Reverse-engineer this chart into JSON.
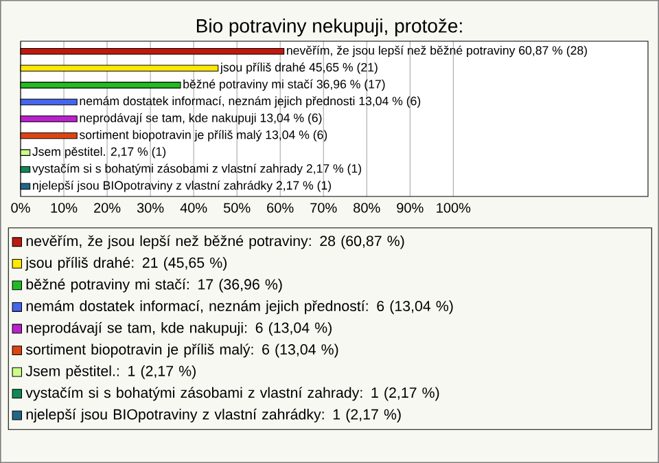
{
  "chart_data": {
    "type": "bar",
    "orientation": "horizontal",
    "title": "Bio potraviny nekupuji, protože:",
    "categories": [
      "nevěřím, že jsou lepší než běžné potraviny 60,87 % (28)",
      "jsou příliš drahé 45,65 % (21)",
      "běžné potraviny mi stačí 36,96 % (17)",
      "nemám dostatek informací, neznám jejich přednosti 13,04 % (6)",
      "neprodávají se tam, kde nakupuji 13,04 % (6)",
      "sortiment biopotravin je příliš malý 13,04 % (6)",
      "Jsem pěstitel. 2,17 % (1)",
      "vystačím si s bohatými zásobami z vlastní zahrady 2,17 % (1)",
      "njelepší jsou BIOpotraviny z vlastní zahrádky 2,17 % (1)"
    ],
    "series": [
      {
        "name": "nevěřím, že jsou lepší než běžné potraviny: 28 (60,87 %)",
        "color": "#c0180c",
        "values": [
          60.87,
          null,
          null,
          null,
          null,
          null,
          null,
          null,
          null
        ]
      },
      {
        "name": "jsou příliš drahé: 21 (45,65 %)",
        "color": "#ffe800",
        "values": [
          null,
          45.65,
          null,
          null,
          null,
          null,
          null,
          null,
          null
        ]
      },
      {
        "name": "běžné potraviny mi stačí: 17 (36,96 %)",
        "color": "#22bb22",
        "values": [
          null,
          null,
          36.96,
          null,
          null,
          null,
          null,
          null,
          null
        ]
      },
      {
        "name": "nemám dostatek informací, neznám jejich předností: 6 (13,04 %)",
        "color": "#4466ee",
        "values": [
          null,
          null,
          null,
          13.04,
          null,
          null,
          null,
          null,
          null
        ]
      },
      {
        "name": "neprodávají se tam, kde nakupuji: 6 (13,04 %)",
        "color": "#bb22cc",
        "values": [
          null,
          null,
          null,
          null,
          13.04,
          null,
          null,
          null,
          null
        ]
      },
      {
        "name": "sortiment biopotravin je příliš malý: 6 (13,04 %)",
        "color": "#dd4411",
        "values": [
          null,
          null,
          null,
          null,
          null,
          13.04,
          null,
          null,
          null
        ]
      },
      {
        "name": "Jsem pěstitel.: 1 (2,17 %)",
        "color": "#ccff88",
        "values": [
          null,
          null,
          null,
          null,
          null,
          null,
          2.17,
          null,
          null
        ]
      },
      {
        "name": "vystačím si s bohatými zásobami z vlastní zahrady: 1 (2,17 %)",
        "color": "#118855",
        "values": [
          null,
          null,
          null,
          null,
          null,
          null,
          null,
          2.17,
          null
        ]
      },
      {
        "name": "njelepší jsou BIOpotraviny z vlastní zahrádky: 1 (2,17 %)",
        "color": "#226688",
        "values": [
          null,
          null,
          null,
          null,
          null,
          null,
          null,
          null,
          2.17
        ]
      }
    ],
    "xlim": [
      0,
      145
    ],
    "xticks": [
      {
        "value": 0,
        "label": "0%"
      },
      {
        "value": 10,
        "label": "10%"
      },
      {
        "value": 20,
        "label": "20%"
      },
      {
        "value": 30,
        "label": "30%"
      },
      {
        "value": 40,
        "label": "40%"
      },
      {
        "value": 50,
        "label": "50%"
      },
      {
        "value": 60,
        "label": "60%"
      },
      {
        "value": 70,
        "label": "70%"
      },
      {
        "value": 80,
        "label": "80%"
      },
      {
        "value": 90,
        "label": "90%"
      },
      {
        "value": 100,
        "label": "100%"
      }
    ],
    "grid": "x",
    "legend": "bottom",
    "tick_labels": "x"
  }
}
